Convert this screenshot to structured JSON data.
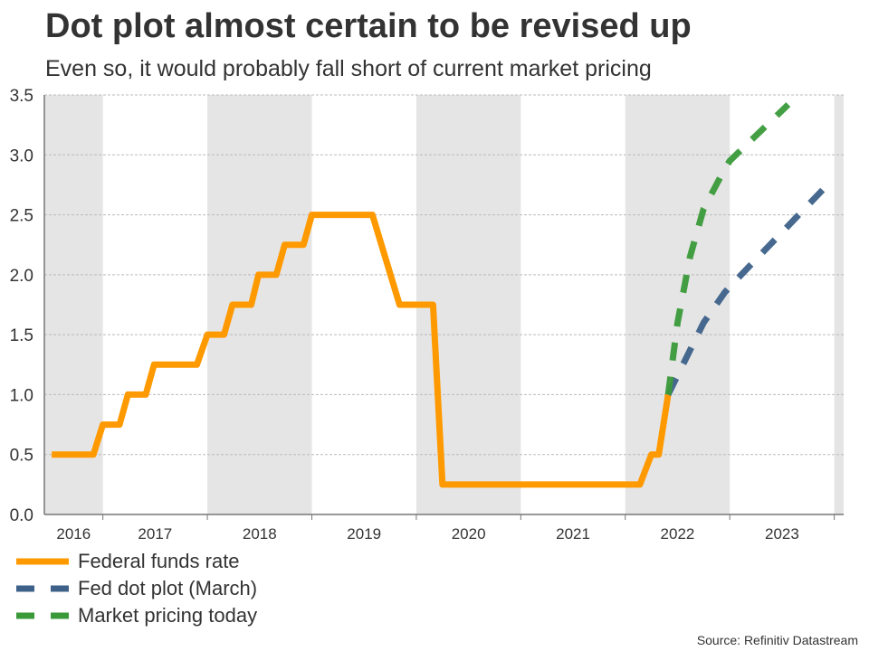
{
  "chart_data": {
    "type": "line",
    "title": "Dot plot almost certain to be revised up",
    "subtitle": "Even so, it would probably fall short of current market pricing",
    "source": "Source: Refinitiv Datastream",
    "xlabel": "",
    "ylabel": "",
    "xlim": [
      2016.44,
      2024.09
    ],
    "ylim": [
      0,
      3.5
    ],
    "yticks": [
      "0.0",
      "0.5",
      "1.0",
      "1.5",
      "2.0",
      "2.5",
      "3.0",
      "3.5"
    ],
    "xtick_labels": [
      "2016",
      "2017",
      "2018",
      "2019",
      "2020",
      "2021",
      "2022",
      "2023"
    ],
    "shaded_years": [
      2016,
      2018,
      2020,
      2022,
      2024
    ],
    "grid": true,
    "legend_position": "bottom-left",
    "series": [
      {
        "name": "Federal funds rate",
        "color": "#ff9900",
        "dash": false,
        "x": [
          2016.51,
          2016.91,
          2017.0,
          2017.16,
          2017.24,
          2017.41,
          2017.49,
          2017.9,
          2018.0,
          2018.16,
          2018.24,
          2018.42,
          2018.49,
          2018.66,
          2018.74,
          2018.92,
          2019.0,
          2019.58,
          2019.84,
          2020.16,
          2020.25,
          2022.14,
          2022.25,
          2022.32,
          2022.41
        ],
        "y": [
          0.5,
          0.5,
          0.75,
          0.75,
          1.0,
          1.0,
          1.25,
          1.25,
          1.5,
          1.5,
          1.75,
          1.75,
          2.0,
          2.0,
          2.25,
          2.25,
          2.5,
          2.5,
          1.75,
          1.75,
          0.25,
          0.25,
          0.5,
          0.5,
          1.0
        ]
      },
      {
        "name": "Fed dot plot (March)",
        "color": "#3d6189",
        "dash": true,
        "x": [
          2022.41,
          2022.75,
          2022.95,
          2023.0,
          2023.99
        ],
        "y": [
          1.0,
          1.6,
          1.85,
          1.9,
          2.8
        ]
      },
      {
        "name": "Market pricing today",
        "color": "#3a9a3a",
        "dash": true,
        "x": [
          2022.41,
          2022.5,
          2022.62,
          2022.75,
          2022.95,
          2023.0,
          2023.56
        ],
        "y": [
          1.0,
          1.6,
          2.15,
          2.55,
          2.88,
          2.95,
          3.42
        ]
      }
    ]
  }
}
